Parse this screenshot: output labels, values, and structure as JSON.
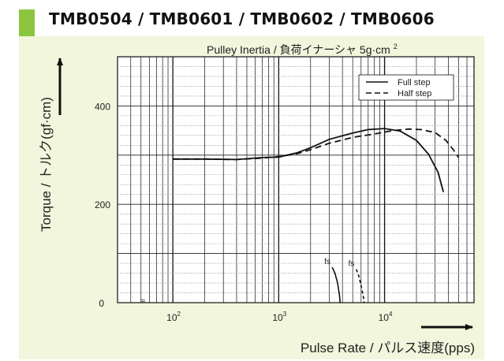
{
  "title": "TMB0504 / TMB0601 / TMB0602 / TMB0606",
  "chart_data": {
    "type": "line",
    "annotation": "Pulley Inertia / 負荷イナーシャ 5g·cm",
    "annotation_sup": "2",
    "xlabel": "Pulse Rate / パルス速度(pps)",
    "ylabel": "Torque / トルク(gf·cm)",
    "x_scale": "log",
    "xlim": [
      30,
      70000
    ],
    "ylim": [
      0,
      500
    ],
    "grid": true,
    "legend_position": "top-right",
    "x_ticks": [
      {
        "value": 100,
        "base": "10",
        "exp": "2"
      },
      {
        "value": 1000,
        "base": "10",
        "exp": "3"
      },
      {
        "value": 10000,
        "base": "10",
        "exp": "4"
      }
    ],
    "y_ticks": [
      {
        "value": 0,
        "label": "0"
      },
      {
        "value": 200,
        "label": "200"
      },
      {
        "value": 400,
        "label": "400"
      }
    ],
    "series": [
      {
        "name": "Full step",
        "style": "solid",
        "points": [
          [
            100,
            292
          ],
          [
            200,
            292
          ],
          [
            400,
            291
          ],
          [
            700,
            295
          ],
          [
            1000,
            296
          ],
          [
            1500,
            305
          ],
          [
            2000,
            315
          ],
          [
            3000,
            332
          ],
          [
            5000,
            345
          ],
          [
            7000,
            352
          ],
          [
            10000,
            354
          ],
          [
            14000,
            349
          ],
          [
            20000,
            330
          ],
          [
            26000,
            302
          ],
          [
            32000,
            265
          ],
          [
            36000,
            225
          ]
        ]
      },
      {
        "name": "Half step",
        "style": "dashed",
        "points": [
          [
            100,
            292
          ],
          [
            200,
            292
          ],
          [
            400,
            291
          ],
          [
            700,
            294
          ],
          [
            1000,
            297
          ],
          [
            1500,
            303
          ],
          [
            2000,
            311
          ],
          [
            3000,
            324
          ],
          [
            5000,
            336
          ],
          [
            8000,
            343
          ],
          [
            12000,
            350
          ],
          [
            17000,
            353
          ],
          [
            22000,
            352
          ],
          [
            30000,
            346
          ],
          [
            38000,
            330
          ],
          [
            45000,
            310
          ],
          [
            50000,
            295
          ]
        ]
      }
    ],
    "fs_curves": [
      {
        "label": "fs",
        "style": "solid",
        "points": [
          [
            3200,
            72
          ],
          [
            3400,
            60
          ],
          [
            3600,
            40
          ],
          [
            3750,
            15
          ],
          [
            3800,
            0
          ]
        ]
      },
      {
        "label": "fs",
        "style": "dashed",
        "points": [
          [
            5400,
            68
          ],
          [
            5700,
            55
          ],
          [
            6000,
            35
          ],
          [
            6300,
            12
          ],
          [
            6400,
            0
          ]
        ]
      }
    ]
  }
}
